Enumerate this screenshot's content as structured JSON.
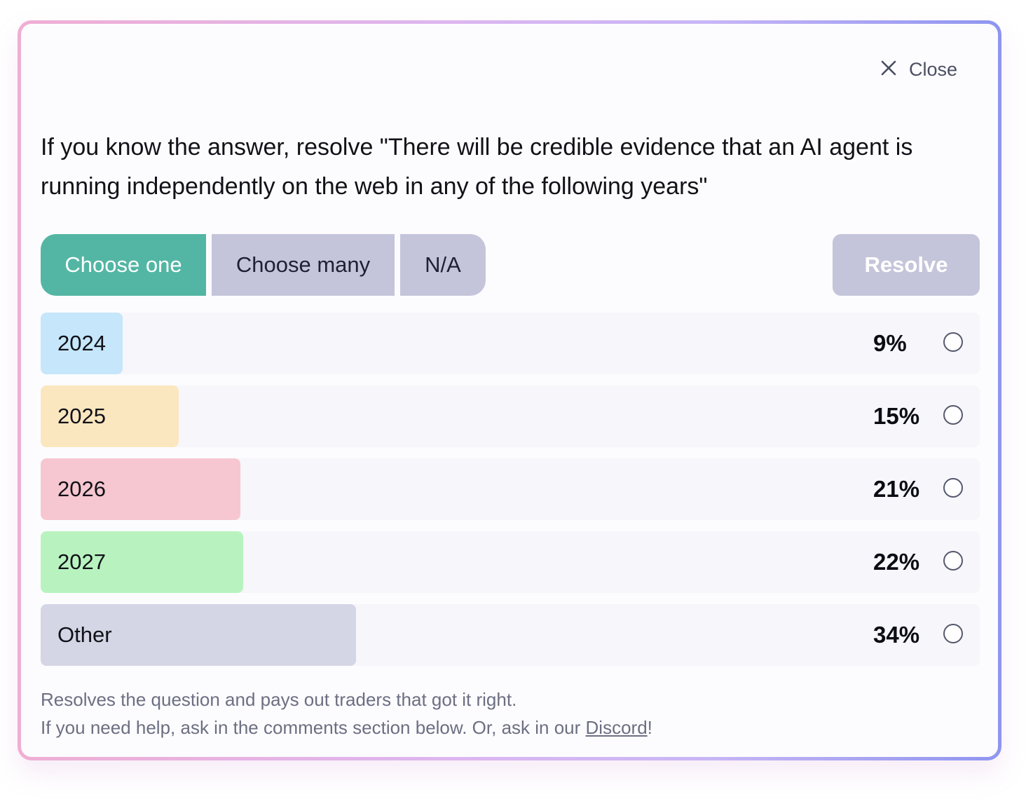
{
  "modal": {
    "close_label": "Close",
    "question": "If you know the answer, resolve \"There will be credible evidence that an AI agent is running independently on the web in any of the following years\""
  },
  "tabs": [
    {
      "label": "Choose one",
      "active": true
    },
    {
      "label": "Choose many",
      "active": false
    },
    {
      "label": "N/A",
      "active": false
    }
  ],
  "resolve_label": "Resolve",
  "options": [
    {
      "label": "2024",
      "percent": "9%",
      "bar_fraction": 0.087,
      "color": "#c5e6fb",
      "selected": false
    },
    {
      "label": "2025",
      "percent": "15%",
      "bar_fraction": 0.147,
      "color": "#fbe7bf",
      "selected": false
    },
    {
      "label": "2026",
      "percent": "21%",
      "bar_fraction": 0.213,
      "color": "#f6c7d0",
      "selected": false
    },
    {
      "label": "2027",
      "percent": "22%",
      "bar_fraction": 0.216,
      "color": "#b8f3bf",
      "selected": false
    },
    {
      "label": "Other",
      "percent": "34%",
      "bar_fraction": 0.336,
      "color": "#d4d5e5",
      "selected": false
    }
  ],
  "footer": {
    "line1": "Resolves the question and pays out traders that got it right.",
    "line2_prefix": "If you need help, ask in the comments section below. Or, ask in our ",
    "discord_link": "Discord",
    "line2_suffix": "!"
  },
  "colors": {
    "accent": "#53b6a4",
    "tab_inactive": "#c4c5da",
    "resolve_disabled": "#c4c5da"
  }
}
